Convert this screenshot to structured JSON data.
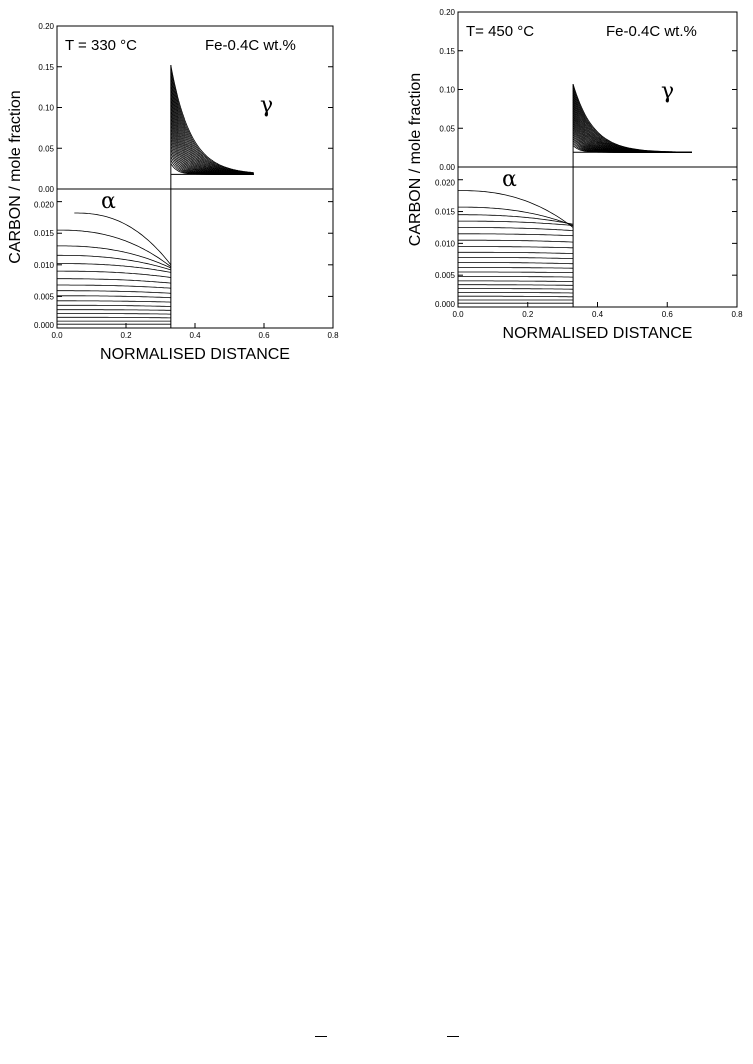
{
  "chart_data": [
    {
      "type": "line",
      "title": "",
      "xlabel": "NORMALISED DISTANCE",
      "ylabel": "CARBON / mole fraction",
      "temperature_label": "T = 330 °C",
      "alloy_label": "Fe-0.4C wt.%",
      "ferrite_label": "α",
      "austenite_label": "γ",
      "xlim": [
        0.0,
        0.8
      ],
      "x_ticks": [
        "0.0",
        "0.2",
        "0.4",
        "0.6",
        "0.8"
      ],
      "interface_x": 0.33,
      "austenite_panel": {
        "ylim": [
          0.0,
          0.2
        ],
        "y_ticks": [
          "0.00",
          "0.05",
          "0.10",
          "0.15",
          "0.20"
        ],
        "peak_carbon": 0.152,
        "far_field_carbon": 0.018,
        "profile_end_x": 0.57
      },
      "ferrite_panel": {
        "ylim": [
          0.0,
          0.022
        ],
        "y_ticks": [
          "0.000",
          "0.005",
          "0.010",
          "0.015",
          "0.020"
        ],
        "curves": [
          {
            "center": 0.0182,
            "edge": 0.01,
            "x_start": 0.05
          },
          {
            "center": 0.0155,
            "edge": 0.0097
          },
          {
            "center": 0.013,
            "edge": 0.0095
          },
          {
            "center": 0.0115,
            "edge": 0.0092
          },
          {
            "center": 0.0102,
            "edge": 0.0088
          },
          {
            "center": 0.009,
            "edge": 0.008
          },
          {
            "center": 0.0078,
            "edge": 0.0071
          },
          {
            "center": 0.0068,
            "edge": 0.0063
          },
          {
            "center": 0.0059,
            "edge": 0.0055
          },
          {
            "center": 0.0051,
            "edge": 0.0048
          },
          {
            "center": 0.0043,
            "edge": 0.0041
          },
          {
            "center": 0.0036,
            "edge": 0.0034
          },
          {
            "center": 0.0029,
            "edge": 0.0028
          },
          {
            "center": 0.0023,
            "edge": 0.0022
          },
          {
            "center": 0.0017,
            "edge": 0.0016
          },
          {
            "center": 0.0011,
            "edge": 0.0011
          },
          {
            "center": 0.0006,
            "edge": 0.0006
          }
        ]
      }
    },
    {
      "type": "line",
      "title": "",
      "xlabel": "NORMALISED DISTANCE",
      "ylabel": "CARBON / mole fraction",
      "temperature_label": "T= 450 °C",
      "alloy_label": "Fe-0.4C wt.%",
      "ferrite_label": "α",
      "austenite_label": "γ",
      "xlim": [
        0.0,
        0.8
      ],
      "x_ticks": [
        "0.0",
        "0.2",
        "0.4",
        "0.6",
        "0.8"
      ],
      "interface_x": 0.33,
      "austenite_panel": {
        "ylim": [
          0.0,
          0.2
        ],
        "y_ticks": [
          "0.00",
          "0.05",
          "0.10",
          "0.15",
          "0.20"
        ],
        "peak_carbon": 0.107,
        "far_field_carbon": 0.019,
        "profile_end_x": 0.67
      },
      "ferrite_panel": {
        "ylim": [
          0.0,
          0.022
        ],
        "y_ticks": [
          "0.000",
          "0.005",
          "0.010",
          "0.015",
          "0.020"
        ],
        "curves": [
          {
            "center": 0.0183,
            "edge": 0.0125
          },
          {
            "center": 0.0157,
            "edge": 0.0128
          },
          {
            "center": 0.0145,
            "edge": 0.013
          },
          {
            "center": 0.0135,
            "edge": 0.0128
          },
          {
            "center": 0.0125,
            "edge": 0.012
          },
          {
            "center": 0.0115,
            "edge": 0.0112
          },
          {
            "center": 0.0105,
            "edge": 0.0102
          },
          {
            "center": 0.0095,
            "edge": 0.0093
          },
          {
            "center": 0.0086,
            "edge": 0.0084
          },
          {
            "center": 0.0078,
            "edge": 0.0076
          },
          {
            "center": 0.007,
            "edge": 0.0068
          },
          {
            "center": 0.0062,
            "edge": 0.0061
          },
          {
            "center": 0.0055,
            "edge": 0.0054
          },
          {
            "center": 0.0048,
            "edge": 0.0047
          },
          {
            "center": 0.0041,
            "edge": 0.004
          },
          {
            "center": 0.0035,
            "edge": 0.0034
          },
          {
            "center": 0.0029,
            "edge": 0.0028
          },
          {
            "center": 0.0023,
            "edge": 0.0022
          },
          {
            "center": 0.0017,
            "edge": 0.0016
          },
          {
            "center": 0.0011,
            "edge": 0.0011
          },
          {
            "center": 0.0006,
            "edge": 0.0006
          }
        ]
      }
    }
  ]
}
